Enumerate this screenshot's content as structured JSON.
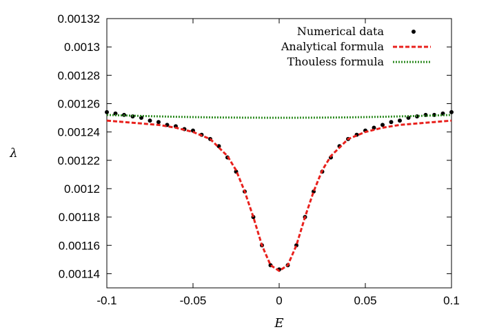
{
  "chart_data": {
    "type": "scatter",
    "xlabel": "E",
    "ylabel": "λ",
    "xlim": [
      -0.1,
      0.1
    ],
    "ylim": [
      0.00113,
      0.00132
    ],
    "x_ticks": [
      -0.1,
      -0.05,
      0,
      0.05,
      0.1
    ],
    "x_tick_labels": [
      "-0.1",
      "-0.05",
      "0",
      "0.05",
      "0.1"
    ],
    "y_ticks": [
      0.00114,
      0.00116,
      0.00118,
      0.0012,
      0.00122,
      0.00124,
      0.00126,
      0.00128,
      0.0013,
      0.00132
    ],
    "y_tick_labels": [
      "0.00114",
      "0.00116",
      "0.00118",
      "0.0012",
      "0.00122",
      "0.00124",
      "0.00126",
      "0.00128",
      "0.0013",
      "0.00132"
    ],
    "grid": false,
    "legend_position": "top-right",
    "series": [
      {
        "name": "Numerical data",
        "style": "points",
        "color": "#000000",
        "x": [
          -0.1,
          -0.095,
          -0.09,
          -0.085,
          -0.08,
          -0.075,
          -0.07,
          -0.065,
          -0.06,
          -0.055,
          -0.05,
          -0.045,
          -0.04,
          -0.035,
          -0.03,
          -0.025,
          -0.02,
          -0.015,
          -0.01,
          -0.005,
          0,
          0.005,
          0.01,
          0.015,
          0.02,
          0.025,
          0.03,
          0.035,
          0.04,
          0.045,
          0.05,
          0.055,
          0.06,
          0.065,
          0.07,
          0.075,
          0.08,
          0.085,
          0.09,
          0.095,
          0.1
        ],
        "y": [
          0.001254,
          0.001253,
          0.001252,
          0.001251,
          0.00125,
          0.001248,
          0.001247,
          0.001245,
          0.001244,
          0.001242,
          0.001241,
          0.001238,
          0.001235,
          0.00123,
          0.001222,
          0.001212,
          0.001198,
          0.00118,
          0.00116,
          0.001146,
          0.001143,
          0.001146,
          0.00116,
          0.00118,
          0.001198,
          0.001212,
          0.001222,
          0.00123,
          0.001235,
          0.001238,
          0.001241,
          0.001243,
          0.001245,
          0.001247,
          0.001248,
          0.00125,
          0.001251,
          0.001252,
          0.001252,
          0.001253,
          0.001254
        ]
      },
      {
        "name": "Analytical formula",
        "style": "dashed-line",
        "color": "#e8201c",
        "x": [
          -0.1,
          -0.09,
          -0.08,
          -0.07,
          -0.06,
          -0.05,
          -0.04,
          -0.03,
          -0.025,
          -0.02,
          -0.015,
          -0.01,
          -0.005,
          0,
          0.005,
          0.01,
          0.015,
          0.02,
          0.025,
          0.03,
          0.04,
          0.05,
          0.06,
          0.07,
          0.08,
          0.09,
          0.1
        ],
        "y": [
          0.001248,
          0.001247,
          0.001246,
          0.001245,
          0.001243,
          0.00124,
          0.001235,
          0.001223,
          0.001213,
          0.001198,
          0.00118,
          0.00116,
          0.001146,
          0.001142,
          0.001146,
          0.00116,
          0.00118,
          0.001198,
          0.001213,
          0.001223,
          0.001235,
          0.00124,
          0.001243,
          0.001245,
          0.001246,
          0.001247,
          0.001248
        ]
      },
      {
        "name": "Thouless formula",
        "style": "dotted-line",
        "color": "#2e8b22",
        "x": [
          -0.1,
          -0.08,
          -0.06,
          -0.04,
          -0.02,
          0,
          0.02,
          0.04,
          0.06,
          0.08,
          0.1
        ],
        "y": [
          0.001252,
          0.0012513,
          0.0012507,
          0.0012503,
          0.0012501,
          0.00125,
          0.0012501,
          0.0012503,
          0.0012507,
          0.0012513,
          0.001252
        ]
      }
    ]
  }
}
